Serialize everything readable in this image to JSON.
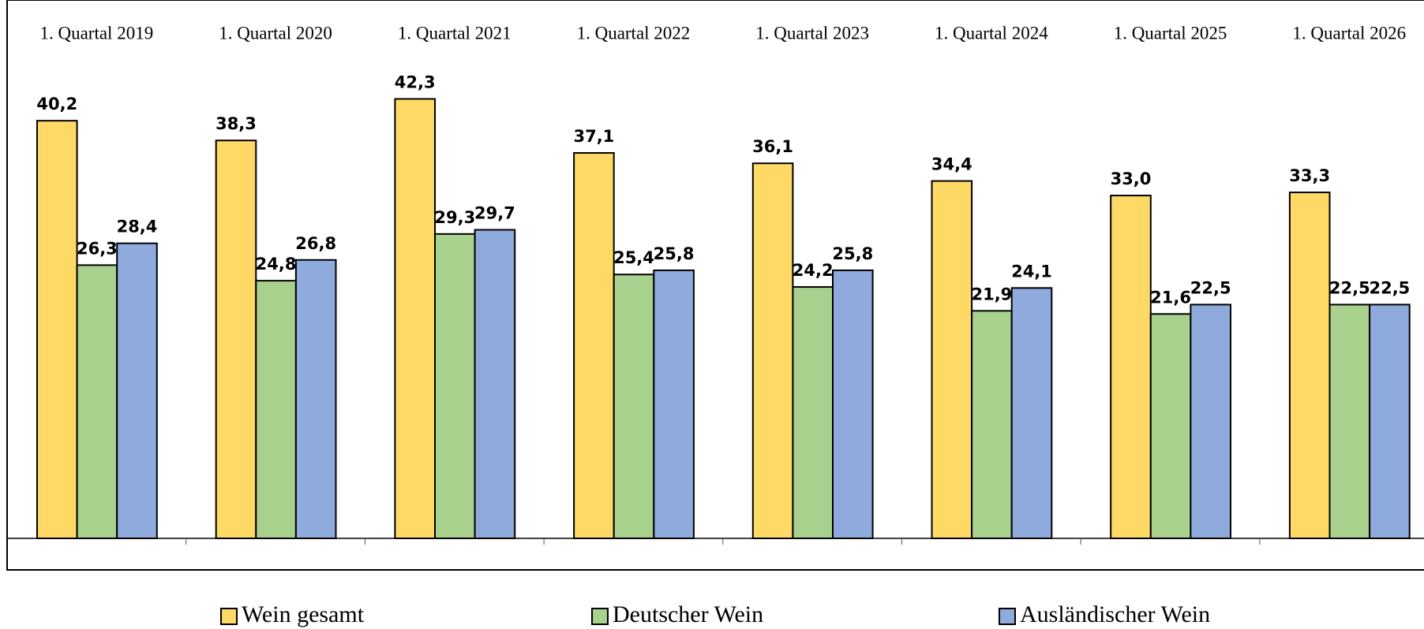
{
  "chart_data": {
    "type": "bar",
    "categories": [
      "1. Quartal 2019",
      "1. Quartal 2020",
      "1. Quartal 2021",
      "1. Quartal 2022",
      "1. Quartal 2023",
      "1. Quartal 2024",
      "1. Quartal 2025",
      "1. Quartal 2026"
    ],
    "series": [
      {
        "name": "Wein gesamt",
        "color": "#FFD966",
        "values": [
          40.2,
          38.3,
          42.3,
          37.1,
          36.1,
          34.4,
          33.0,
          33.3
        ],
        "value_labels": [
          "40,2",
          "38,3",
          "42,3",
          "37,1",
          "36,1",
          "34,4",
          "33,0",
          "33,3"
        ]
      },
      {
        "name": "Deutscher Wein",
        "color": "#A9D18E",
        "values": [
          26.3,
          24.8,
          29.3,
          25.4,
          24.2,
          21.9,
          21.6,
          22.5
        ],
        "value_labels": [
          "26,3",
          "24,8",
          "29,3",
          "25,4",
          "24,2",
          "21,9",
          "21,6",
          "22,5"
        ]
      },
      {
        "name": "Ausländischer Wein",
        "color": "#8FAADC",
        "values": [
          28.4,
          26.8,
          29.7,
          25.8,
          25.8,
          24.1,
          22.5,
          22.5
        ],
        "value_labels": [
          "28,4",
          "26,8",
          "29,7",
          "25,8",
          "25,8",
          "24,1",
          "22,5",
          "22,5"
        ]
      }
    ],
    "ylim": [
      0,
      50
    ],
    "grid": false,
    "legend": "bottom"
  }
}
